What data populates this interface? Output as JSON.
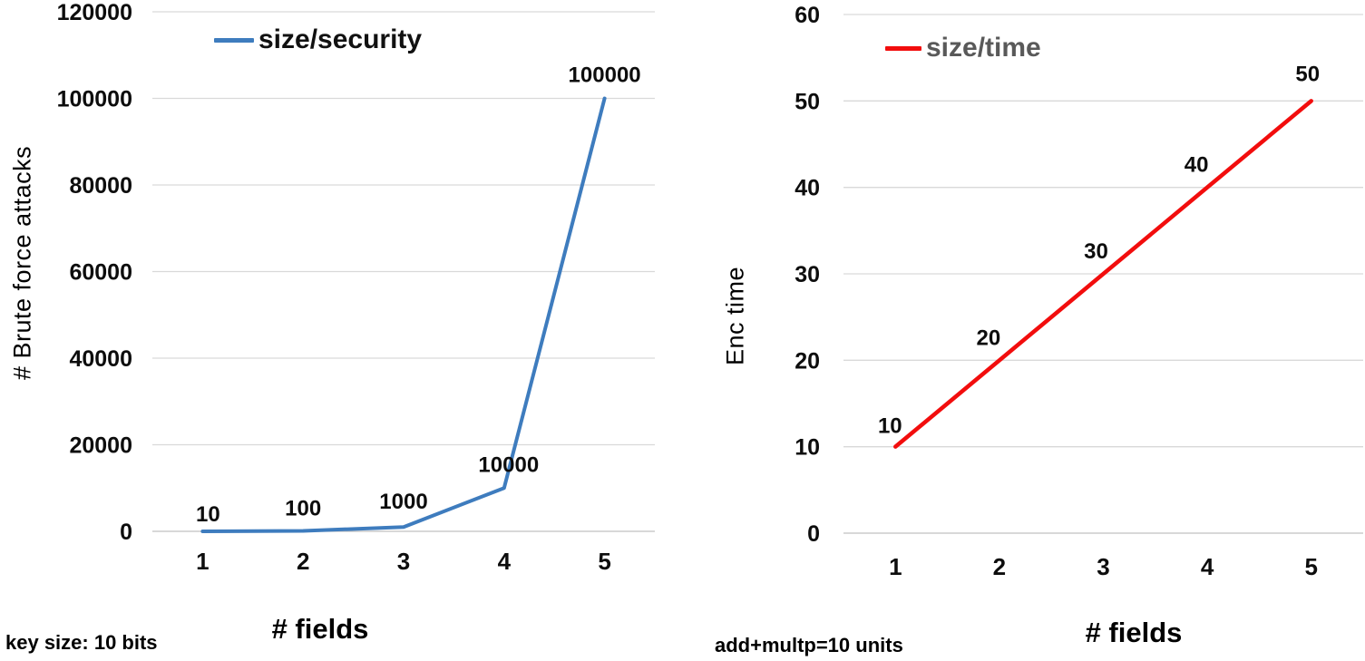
{
  "page": {
    "background": "#FFFFFF"
  },
  "colors": {
    "grid": "#D9D9D9",
    "axis_line": "#C0C0C0",
    "tick_label": "#0D0D0D",
    "data_label": "#0D0D0D"
  },
  "chart_data": [
    {
      "id": "size-security",
      "type": "line",
      "title": "",
      "legend_position": "top-inside",
      "legend_text_color": "#111111",
      "xlabel": "# fields",
      "ylabel": "# Brute force attacks",
      "caption": "key size: 10 bits",
      "categories": [
        "1",
        "2",
        "3",
        "4",
        "5"
      ],
      "series": [
        {
          "name": "size/security",
          "color": "#3E7CBE",
          "values": [
            10,
            100,
            1000,
            10000,
            100000
          ],
          "data_labels": [
            "10",
            "100",
            "1000",
            "10000",
            "100000"
          ]
        }
      ],
      "ylim": [
        0,
        120000
      ],
      "yticks": [
        0,
        20000,
        40000,
        60000,
        80000,
        100000,
        120000
      ],
      "ytick_labels": [
        "0",
        "20000",
        "40000",
        "60000",
        "80000",
        "100000",
        "120000"
      ],
      "grid": true
    },
    {
      "id": "size-time",
      "type": "line",
      "title": "",
      "legend_position": "top-inside",
      "legend_text_color": "#595959",
      "xlabel": "# fields",
      "ylabel": "Enc time",
      "caption": "add+multp=10 units",
      "categories": [
        "1",
        "2",
        "3",
        "4",
        "5"
      ],
      "series": [
        {
          "name": "size/time",
          "color": "#F20D0D",
          "values": [
            10,
            20,
            30,
            40,
            50
          ],
          "data_labels": [
            "10",
            "20",
            "30",
            "40",
            "50"
          ]
        }
      ],
      "ylim": [
        0,
        60
      ],
      "yticks": [
        0,
        10,
        20,
        30,
        40,
        50,
        60
      ],
      "ytick_labels": [
        "0",
        "10",
        "20",
        "30",
        "40",
        "50",
        "60"
      ],
      "grid": true
    }
  ]
}
